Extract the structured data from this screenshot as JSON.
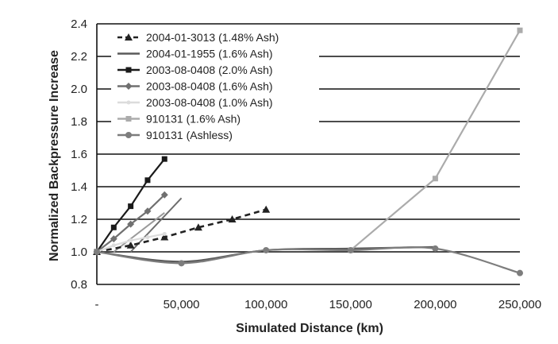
{
  "chart_data": {
    "type": "line",
    "title": "",
    "xlabel": "Simulated Distance (km)",
    "ylabel": "Normalized Backpressure Increase",
    "xlim": [
      0,
      250000
    ],
    "ylim": [
      0.8,
      2.4
    ],
    "x_ticks": [
      0,
      50000,
      100000,
      150000,
      200000,
      250000
    ],
    "x_tick_labels": [
      "-",
      "50,000",
      "100,000",
      "150,000",
      "200,000",
      "250,000"
    ],
    "y_ticks": [
      0.8,
      1.0,
      1.2,
      1.4,
      1.6,
      1.8,
      2.0,
      2.2,
      2.4
    ],
    "y_tick_labels": [
      "0.8",
      "1.0",
      "1.2",
      "1.4",
      "1.6",
      "1.8",
      "2.0",
      "2.2",
      "2.4"
    ],
    "grid": "horizontal",
    "legend_position": "top-left",
    "series": [
      {
        "name": "2004-01-3013 (1.48% Ash)",
        "color": "#222222",
        "dash": true,
        "marker": "triangle",
        "x": [
          0,
          20000,
          40000,
          60000,
          80000,
          100000
        ],
        "y": [
          1.0,
          1.04,
          1.09,
          1.15,
          1.2,
          1.26
        ]
      },
      {
        "name": "2004-01-1955 (1.6% Ash)",
        "color": "#5a5a5a",
        "dash": false,
        "marker": "none",
        "x": [
          0,
          50000,
          100000,
          150000,
          200000
        ],
        "y": [
          1.0,
          0.94,
          1.01,
          1.02,
          1.03
        ]
      },
      {
        "name": "2003-08-0408 (2.0% Ash)",
        "color": "#1a1a1a",
        "dash": false,
        "marker": "square",
        "x": [
          0,
          10000,
          20000,
          30000,
          40000
        ],
        "y": [
          1.0,
          1.15,
          1.28,
          1.44,
          1.57
        ]
      },
      {
        "name": "2003-08-0408 (1.6% Ash)",
        "color": "#707070",
        "dash": false,
        "marker": "diamond",
        "x": [
          0,
          10000,
          20000,
          30000,
          40000
        ],
        "y": [
          1.0,
          1.08,
          1.17,
          1.25,
          1.35
        ]
      },
      {
        "name": "2003-08-0408 (1.0% Ash)",
        "color": "#dcdcdc",
        "dash": false,
        "marker": "dot",
        "x": [
          0,
          10000,
          20000,
          30000,
          40000
        ],
        "y": [
          1.0,
          1.04,
          1.07,
          1.09,
          1.11
        ]
      },
      {
        "name": "910131 (1.6% Ash)",
        "color": "#ababab",
        "dash": false,
        "marker": "square",
        "x": [
          150000,
          200000,
          250000
        ],
        "y": [
          1.01,
          1.45,
          2.36
        ]
      },
      {
        "name": "910131 (Ashless)",
        "color": "#7d7d7d",
        "dash": false,
        "marker": "circle",
        "x": [
          0,
          50000,
          100000,
          150000,
          200000,
          250000
        ],
        "y": [
          1.0,
          0.93,
          1.01,
          1.01,
          1.02,
          0.87
        ]
      }
    ],
    "extra_lines": [
      {
        "color": "#6e6e6e",
        "x": [
          20000,
          50000
        ],
        "y": [
          1.0,
          1.33
        ]
      },
      {
        "color": "#9a9a9a",
        "x": [
          10000,
          40000
        ],
        "y": [
          1.0,
          1.24
        ]
      }
    ]
  }
}
